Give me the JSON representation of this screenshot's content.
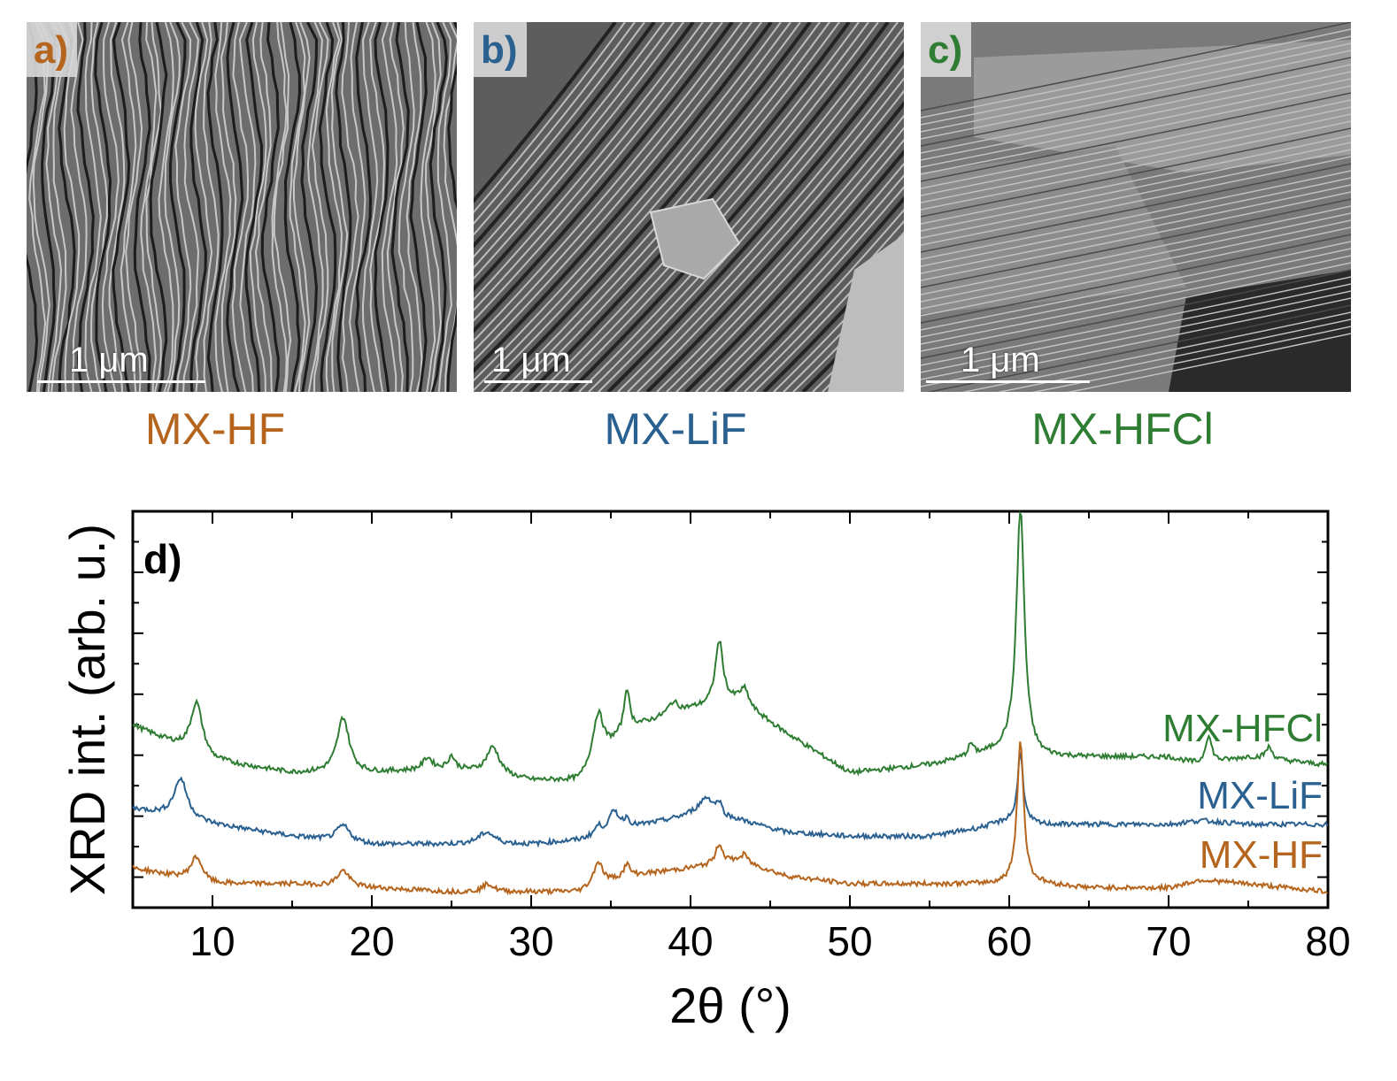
{
  "panels": [
    {
      "letter": "a)",
      "scale": "1 μm",
      "sample": "MX-HF",
      "color": "#b5651d"
    },
    {
      "letter": "b)",
      "scale": "1 μm",
      "sample": "MX-LiF",
      "color": "#2b6190"
    },
    {
      "letter": "c)",
      "scale": "1 μm",
      "sample": "MX-HFCl",
      "color": "#2e7d32"
    }
  ],
  "chart_data": {
    "type": "line",
    "panel_label": "d)",
    "xlabel": "2θ (°)",
    "ylabel": "XRD int. (arb. u.)",
    "xlim": [
      5,
      80
    ],
    "xticks": [
      10,
      20,
      30,
      40,
      50,
      60,
      70,
      80
    ],
    "ylim": [
      0,
      1
    ],
    "grid": false,
    "series": [
      {
        "name": "MX-HFCl",
        "color": "#2e7d32",
        "offset": 0.33,
        "baseline": [
          [
            5,
            0.46
          ],
          [
            10,
            0.37
          ],
          [
            15,
            0.34
          ],
          [
            20,
            0.34
          ],
          [
            25,
            0.35
          ],
          [
            30,
            0.32
          ],
          [
            33,
            0.32
          ],
          [
            36,
            0.45
          ],
          [
            40,
            0.5
          ],
          [
            43,
            0.52
          ],
          [
            46,
            0.44
          ],
          [
            50,
            0.34
          ],
          [
            55,
            0.36
          ],
          [
            60,
            0.4
          ],
          [
            62,
            0.38
          ],
          [
            65,
            0.38
          ],
          [
            70,
            0.38
          ],
          [
            72,
            0.36
          ],
          [
            75,
            0.38
          ],
          [
            80,
            0.36
          ]
        ],
        "peaks": [
          [
            9.0,
            0.13,
            0.45
          ],
          [
            18.2,
            0.14,
            0.45
          ],
          [
            23.5,
            0.03,
            0.35
          ],
          [
            25.0,
            0.03,
            0.25
          ],
          [
            27.6,
            0.07,
            0.5
          ],
          [
            34.2,
            0.12,
            0.4
          ],
          [
            36.0,
            0.1,
            0.2
          ],
          [
            38.9,
            0.03,
            0.4
          ],
          [
            41.8,
            0.16,
            0.3
          ],
          [
            43.4,
            0.04,
            0.3
          ],
          [
            57.6,
            0.03,
            0.2
          ],
          [
            60.7,
            0.62,
            0.3
          ],
          [
            72.5,
            0.07,
            0.25
          ],
          [
            76.3,
            0.03,
            0.25
          ]
        ]
      },
      {
        "name": "MX-LiF",
        "color": "#2b6190",
        "offset": 0.17,
        "baseline": [
          [
            5,
            0.25
          ],
          [
            10,
            0.21
          ],
          [
            15,
            0.18
          ],
          [
            20,
            0.16
          ],
          [
            25,
            0.16
          ],
          [
            30,
            0.16
          ],
          [
            33,
            0.17
          ],
          [
            36,
            0.2
          ],
          [
            40,
            0.23
          ],
          [
            43,
            0.22
          ],
          [
            46,
            0.19
          ],
          [
            50,
            0.18
          ],
          [
            55,
            0.18
          ],
          [
            58,
            0.2
          ],
          [
            60,
            0.22
          ],
          [
            62,
            0.21
          ],
          [
            65,
            0.21
          ],
          [
            70,
            0.21
          ],
          [
            72,
            0.22
          ],
          [
            75,
            0.21
          ],
          [
            80,
            0.21
          ]
        ],
        "peaks": [
          [
            8.0,
            0.1,
            0.5
          ],
          [
            18.2,
            0.04,
            0.5
          ],
          [
            27.2,
            0.03,
            0.6
          ],
          [
            34.2,
            0.02,
            0.25
          ],
          [
            35.2,
            0.05,
            0.4
          ],
          [
            36.0,
            0.02,
            0.2
          ],
          [
            41.0,
            0.05,
            0.6
          ],
          [
            41.8,
            0.03,
            0.2
          ],
          [
            60.7,
            0.18,
            0.2
          ]
        ]
      },
      {
        "name": "MX-HF",
        "color": "#b5651d",
        "offset": 0.0,
        "baseline": [
          [
            5,
            0.1
          ],
          [
            10,
            0.06
          ],
          [
            15,
            0.06
          ],
          [
            20,
            0.05
          ],
          [
            25,
            0.04
          ],
          [
            30,
            0.04
          ],
          [
            33,
            0.04
          ],
          [
            36,
            0.08
          ],
          [
            40,
            0.1
          ],
          [
            43,
            0.12
          ],
          [
            46,
            0.08
          ],
          [
            50,
            0.06
          ],
          [
            55,
            0.06
          ],
          [
            60,
            0.06
          ],
          [
            62,
            0.06
          ],
          [
            65,
            0.05
          ],
          [
            70,
            0.05
          ],
          [
            72,
            0.07
          ],
          [
            75,
            0.06
          ],
          [
            80,
            0.04
          ]
        ],
        "peaks": [
          [
            9.0,
            0.06,
            0.45
          ],
          [
            18.2,
            0.04,
            0.45
          ],
          [
            27.3,
            0.02,
            0.4
          ],
          [
            34.2,
            0.06,
            0.35
          ],
          [
            36.0,
            0.03,
            0.2
          ],
          [
            41.8,
            0.05,
            0.25
          ],
          [
            43.4,
            0.02,
            0.2
          ],
          [
            60.7,
            0.36,
            0.25
          ]
        ]
      }
    ]
  }
}
